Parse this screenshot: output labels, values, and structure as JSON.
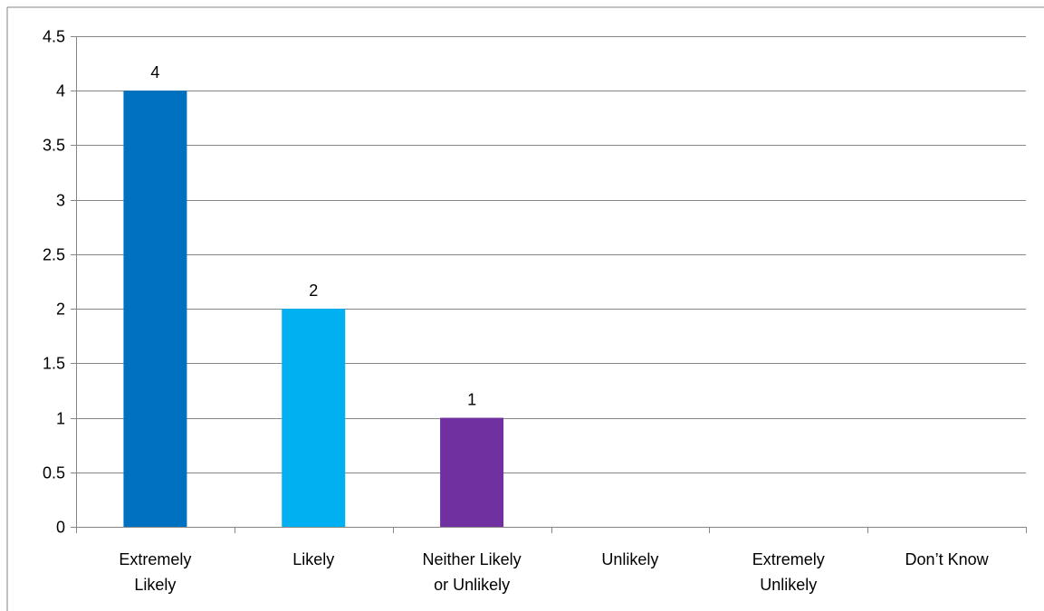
{
  "chart_data": {
    "type": "bar",
    "categories": [
      [
        "Extremely",
        "Likely"
      ],
      [
        "Likely"
      ],
      [
        "Neither Likely",
        "or Unlikely"
      ],
      [
        "Unlikely"
      ],
      [
        "Extremely",
        "Unlikely"
      ],
      [
        "Don’t Know"
      ]
    ],
    "values": [
      4,
      2,
      1,
      null,
      null,
      null
    ],
    "data_labels": [
      "4",
      "2",
      "1",
      "",
      "",
      ""
    ],
    "bar_colors": [
      "#0070C0",
      "#00B0F0",
      "#7030A0",
      "#0070C0",
      "#0070C0",
      "#0070C0"
    ],
    "ylim": [
      0,
      4.5
    ],
    "y_ticks": [
      "0",
      "0.5",
      "1",
      "1.5",
      "2",
      "2.5",
      "3",
      "3.5",
      "4",
      "4.5"
    ],
    "y_tick_values": [
      0,
      0.5,
      1,
      1.5,
      2,
      2.5,
      3,
      3.5,
      4,
      4.5
    ],
    "grid": true,
    "legend": "none",
    "title": "",
    "xlabel": "",
    "ylabel": "",
    "colors": {
      "gridline": "#868686",
      "axis": "#868686",
      "frame": "#868686"
    }
  }
}
